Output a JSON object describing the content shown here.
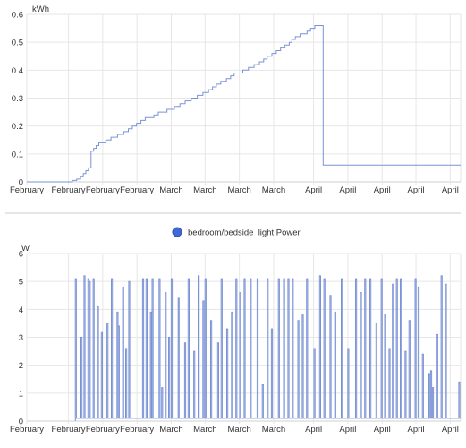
{
  "colors": {
    "series": "#7b93d6",
    "grid": "#e6e6e6",
    "axis": "#cfcfcf",
    "divider": "#cccccc",
    "legend_dot": "#4169d6",
    "legend_dot_border": "#2e4fb0"
  },
  "chart_data": [
    {
      "type": "line",
      "step": true,
      "ylabel": "kWh",
      "ylim": [
        0,
        0.6
      ],
      "yticks": [
        0,
        0.1,
        0.2,
        0.3,
        0.4,
        0.5,
        0.6
      ],
      "ytick_labels": [
        "0",
        "0.1",
        "0.2",
        "0.3",
        "0.4",
        "0.5",
        "0.6"
      ],
      "xlim": [
        0,
        100
      ],
      "xtick_labels": [
        "February",
        "February",
        "February",
        "February",
        "March",
        "March",
        "March",
        "March",
        "April",
        "April",
        "April",
        "April",
        "April"
      ],
      "xticks": [
        0,
        9.6,
        17.5,
        25.4,
        33.3,
        41.1,
        49.0,
        56.9,
        66.1,
        74.0,
        81.9,
        89.7,
        97.6
      ],
      "grid": true,
      "legend": "none",
      "series": [
        {
          "x": [
            0,
            10.5,
            11.5,
            12.4,
            13.0,
            13.6,
            14.2,
            14.8,
            15.4,
            16.0,
            16.6,
            17.2,
            18.2,
            19.4,
            20.9,
            22.4,
            23.4,
            24.3,
            25.3,
            26.3,
            27.3,
            28.3,
            29.3,
            30.3,
            32.3,
            34.0,
            35.3,
            36.5,
            37.9,
            39.3,
            40.6,
            41.9,
            42.8,
            43.7,
            44.7,
            46.0,
            47.0,
            47.8,
            48.8,
            49.8,
            51.1,
            52.4,
            53.6,
            54.6,
            55.4,
            56.5,
            57.5,
            58.5,
            59.5,
            60.5,
            61.1,
            61.9,
            62.5,
            63.0,
            63.7,
            64.6,
            65.4,
            66.4,
            67.3,
            68.3,
            69.3,
            70.1,
            71.0,
            72.2,
            72.9,
            73.8,
            74.6,
            75.4,
            76.2,
            77.1,
            77.6,
            78.0,
            78.3,
            78.4,
            80.0,
            100
          ],
          "y": [
            0,
            0.005,
            0.01,
            0.02,
            0.03,
            0.04,
            0.05,
            0.11,
            0.12,
            0.13,
            0.14,
            0.14,
            0.15,
            0.16,
            0.17,
            0.18,
            0.19,
            0.2,
            0.21,
            0.22,
            0.23,
            0.23,
            0.24,
            0.25,
            0.26,
            0.27,
            0.28,
            0.29,
            0.3,
            0.31,
            0.32,
            0.33,
            0.34,
            0.35,
            0.36,
            0.37,
            0.38,
            0.39,
            0.39,
            0.4,
            0.41,
            0.42,
            0.43,
            0.44,
            0.45,
            0.46,
            0.47,
            0.48,
            0.49,
            0.5,
            0.51,
            0.52,
            0.52,
            0.53,
            0.53,
            0.54,
            0.55,
            0.56,
            0.56,
            0.06,
            0.06,
            0.06,
            0.06,
            0.06,
            0.06,
            0.06,
            0.06,
            0.06,
            0.06,
            0.06,
            0.06,
            0.06,
            0.06,
            0.06,
            0.06,
            0.06
          ]
        }
      ]
    },
    {
      "type": "line",
      "ylabel": "W",
      "ylim": [
        0,
        6
      ],
      "yticks": [
        0,
        1,
        2,
        3,
        4,
        5,
        6
      ],
      "ytick_labels": [
        "0",
        "1",
        "2",
        "3",
        "4",
        "5",
        "6"
      ],
      "xlim": [
        0,
        100
      ],
      "xtick_labels": [
        "February",
        "February",
        "February",
        "February",
        "March",
        "March",
        "March",
        "March",
        "April",
        "April",
        "April",
        "April",
        "April"
      ],
      "xticks": [
        0,
        9.6,
        17.5,
        25.4,
        33.3,
        41.1,
        49.0,
        56.9,
        66.1,
        74.0,
        81.9,
        89.7,
        97.6
      ],
      "grid": true,
      "legend": "top-center",
      "series": [
        {
          "name": "bedroom/bedside_light Power",
          "baseline": 0.1,
          "series_start": 11.2,
          "spikes": [
            {
              "x": 11.3,
              "y": 5.1
            },
            {
              "x": 12.6,
              "y": 3.0
            },
            {
              "x": 13.3,
              "y": 5.2
            },
            {
              "x": 14.2,
              "y": 5.1
            },
            {
              "x": 14.5,
              "y": 5.0
            },
            {
              "x": 15.4,
              "y": 5.1
            },
            {
              "x": 16.4,
              "y": 4.1
            },
            {
              "x": 17.3,
              "y": 3.2
            },
            {
              "x": 18.6,
              "y": 3.5
            },
            {
              "x": 19.6,
              "y": 5.1
            },
            {
              "x": 20.9,
              "y": 3.9
            },
            {
              "x": 21.2,
              "y": 3.4
            },
            {
              "x": 22.2,
              "y": 4.8
            },
            {
              "x": 22.9,
              "y": 2.6
            },
            {
              "x": 23.6,
              "y": 5.0
            },
            {
              "x": 26.8,
              "y": 5.1
            },
            {
              "x": 27.6,
              "y": 5.1
            },
            {
              "x": 28.6,
              "y": 3.9
            },
            {
              "x": 29.0,
              "y": 5.1
            },
            {
              "x": 30.6,
              "y": 5.1
            },
            {
              "x": 31.2,
              "y": 1.2
            },
            {
              "x": 32.0,
              "y": 4.6
            },
            {
              "x": 32.8,
              "y": 3.0
            },
            {
              "x": 33.4,
              "y": 5.1
            },
            {
              "x": 35.0,
              "y": 4.4
            },
            {
              "x": 36.5,
              "y": 2.8
            },
            {
              "x": 37.3,
              "y": 5.1
            },
            {
              "x": 38.6,
              "y": 2.5
            },
            {
              "x": 39.6,
              "y": 5.2
            },
            {
              "x": 40.7,
              "y": 4.3
            },
            {
              "x": 41.2,
              "y": 5.1
            },
            {
              "x": 42.5,
              "y": 3.6
            },
            {
              "x": 44.1,
              "y": 2.8
            },
            {
              "x": 44.9,
              "y": 5.1
            },
            {
              "x": 46.2,
              "y": 3.3
            },
            {
              "x": 47.3,
              "y": 3.9
            },
            {
              "x": 48.3,
              "y": 5.1
            },
            {
              "x": 49.2,
              "y": 4.6
            },
            {
              "x": 50.2,
              "y": 5.1
            },
            {
              "x": 51.6,
              "y": 5.1
            },
            {
              "x": 53.2,
              "y": 5.1
            },
            {
              "x": 54.4,
              "y": 1.3
            },
            {
              "x": 55.5,
              "y": 5.1
            },
            {
              "x": 56.5,
              "y": 3.3
            },
            {
              "x": 58.1,
              "y": 5.1
            },
            {
              "x": 59.3,
              "y": 5.1
            },
            {
              "x": 60.3,
              "y": 5.1
            },
            {
              "x": 61.3,
              "y": 5.1
            },
            {
              "x": 62.6,
              "y": 3.6
            },
            {
              "x": 63.6,
              "y": 3.8
            },
            {
              "x": 64.6,
              "y": 5.1
            },
            {
              "x": 66.3,
              "y": 2.6
            },
            {
              "x": 67.6,
              "y": 5.2
            },
            {
              "x": 68.6,
              "y": 5.1
            },
            {
              "x": 70.0,
              "y": 4.5
            },
            {
              "x": 71.1,
              "y": 3.9
            },
            {
              "x": 72.6,
              "y": 5.1
            },
            {
              "x": 74.1,
              "y": 2.6
            },
            {
              "x": 75.9,
              "y": 5.1
            },
            {
              "x": 77.0,
              "y": 4.6
            },
            {
              "x": 78.0,
              "y": 5.1
            },
            {
              "x": 79.2,
              "y": 5.1
            },
            {
              "x": 80.6,
              "y": 3.5
            },
            {
              "x": 81.8,
              "y": 5.1
            },
            {
              "x": 82.6,
              "y": 3.8
            },
            {
              "x": 83.6,
              "y": 2.6
            },
            {
              "x": 84.4,
              "y": 4.9
            },
            {
              "x": 85.3,
              "y": 5.1
            },
            {
              "x": 86.2,
              "y": 5.1
            },
            {
              "x": 87.3,
              "y": 2.5
            },
            {
              "x": 88.2,
              "y": 3.6
            },
            {
              "x": 89.6,
              "y": 5.1
            },
            {
              "x": 90.3,
              "y": 4.8
            },
            {
              "x": 91.3,
              "y": 2.4
            },
            {
              "x": 92.8,
              "y": 1.7
            },
            {
              "x": 93.2,
              "y": 1.8
            },
            {
              "x": 93.6,
              "y": 1.2
            },
            {
              "x": 94.6,
              "y": 3.1
            },
            {
              "x": 95.6,
              "y": 5.2
            },
            {
              "x": 96.6,
              "y": 4.9
            },
            {
              "x": 99.7,
              "y": 1.4
            }
          ]
        }
      ]
    }
  ]
}
